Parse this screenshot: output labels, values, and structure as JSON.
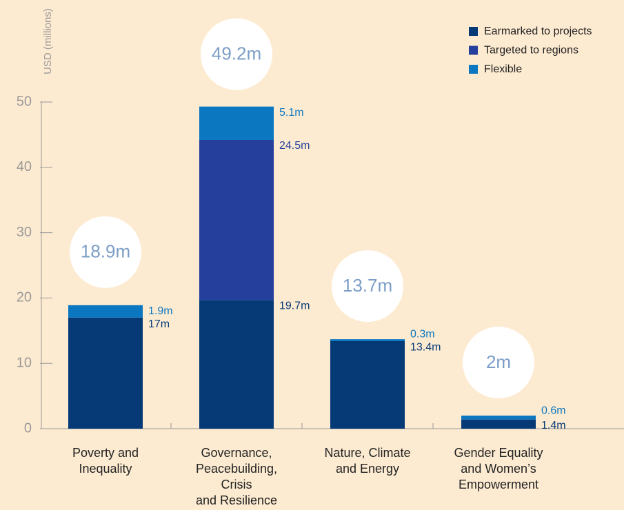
{
  "chart_data": {
    "type": "stacked_bar",
    "y_label": "USD (millions)",
    "categories": [
      "Poverty and\nInequality",
      "Governance,\nPeacebuilding,\nCrisis\nand Resilience",
      "Nature, Climate\nand Energy",
      "Gender Equality\nand Women’s\nEmpowerment"
    ],
    "series": [
      {
        "name": "Earmarked to projects",
        "color": "#053a77",
        "values": [
          17,
          19.7,
          13.4,
          1.4
        ],
        "value_labels": [
          "17m",
          "19.7m",
          "13.4m",
          "1.4m"
        ]
      },
      {
        "name": "Targeted to regions",
        "color": "#24409c",
        "values": [
          null,
          24.5,
          null,
          null
        ],
        "value_labels": [
          null,
          "24.5m",
          null,
          null
        ]
      },
      {
        "name": "Flexible",
        "color": "#0c77c1",
        "values": [
          1.9,
          5.1,
          0.3,
          0.6
        ],
        "value_labels": [
          "1.9m",
          "5.1m",
          "0.3m",
          "0.6m"
        ]
      }
    ],
    "totals": [
      18.9,
      49.2,
      13.7,
      2
    ],
    "total_labels": [
      "18.9m",
      "49.2m",
      "13.7m",
      "2m"
    ],
    "ylim": [
      0,
      50
    ],
    "yticks": [
      0,
      10,
      20,
      30,
      40,
      50
    ],
    "legend": "top-right"
  }
}
